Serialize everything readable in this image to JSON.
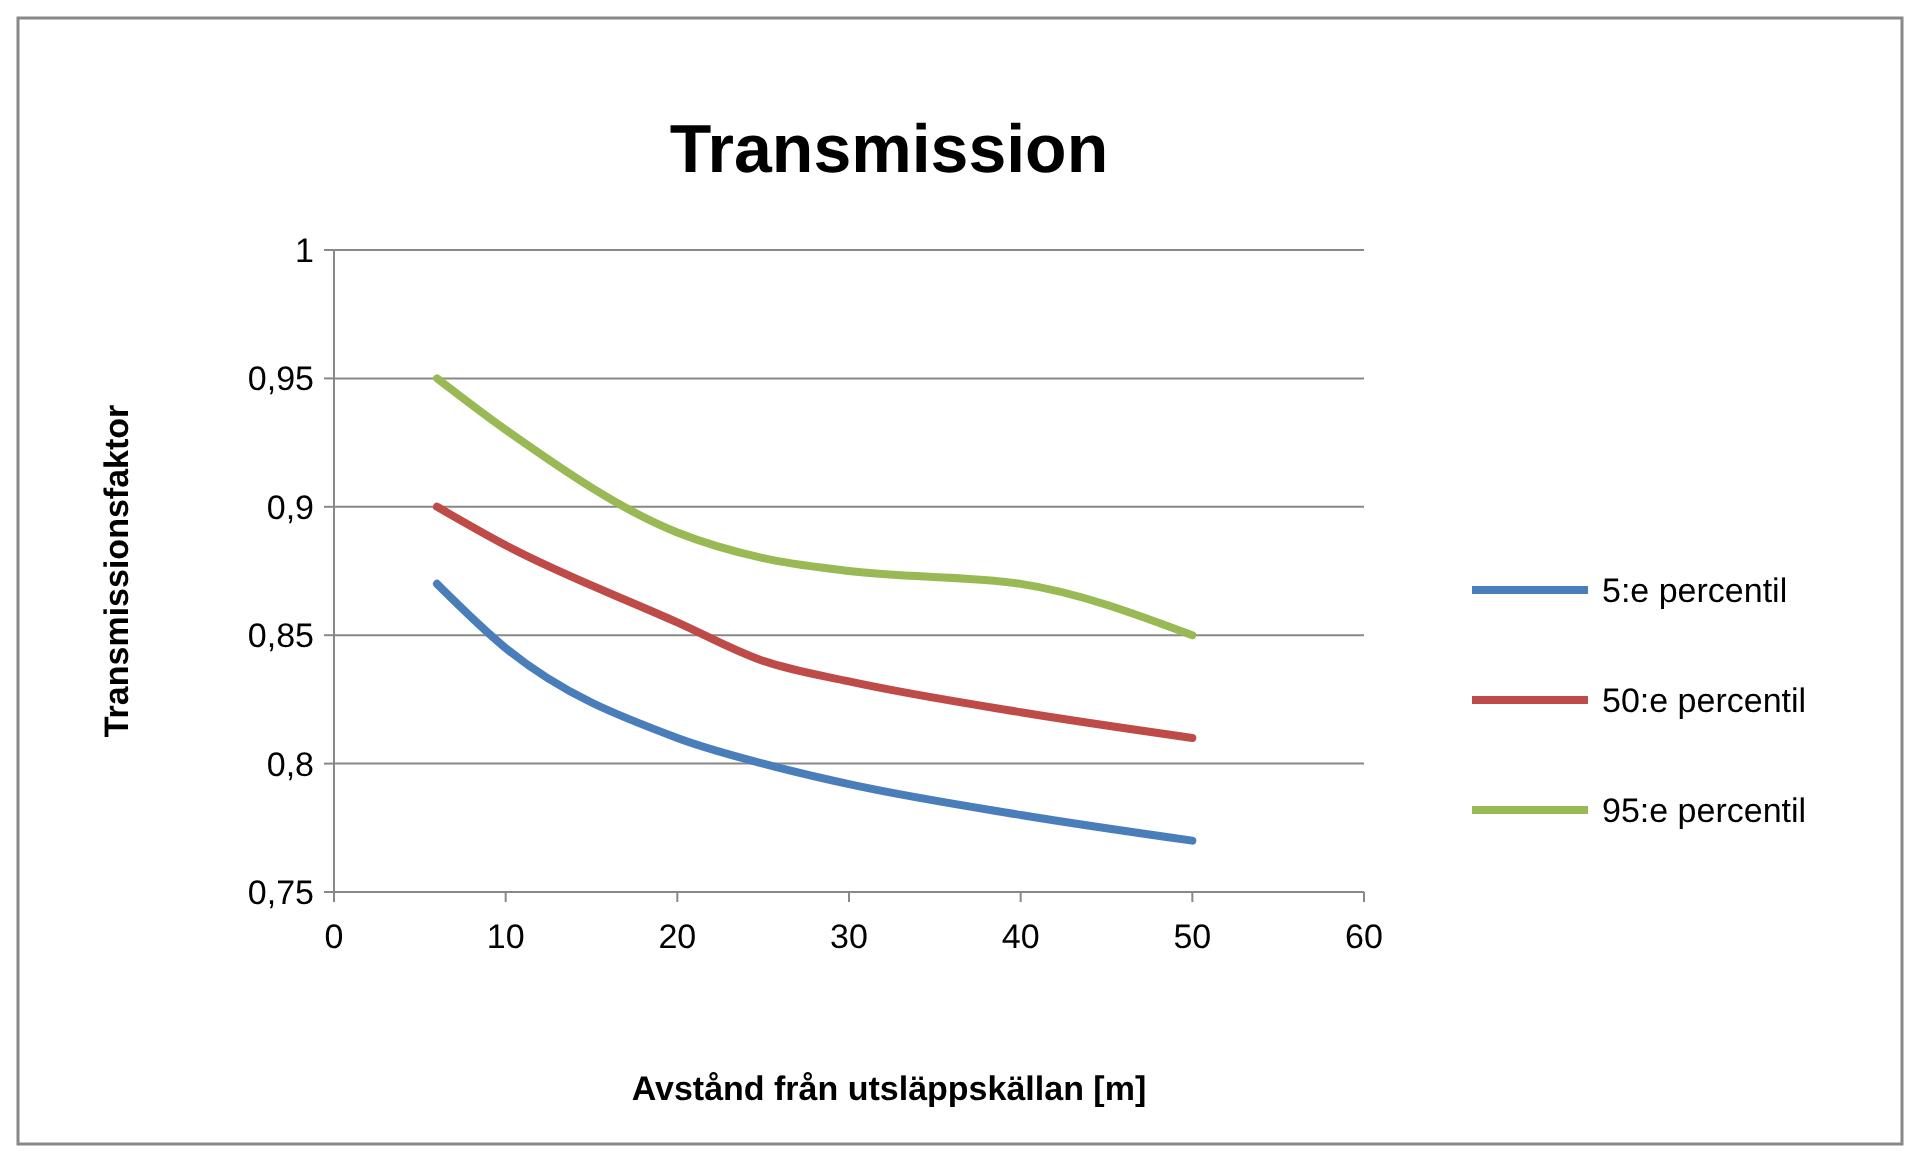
{
  "chart_data": {
    "type": "line",
    "title": "Transmission",
    "xlabel": "Avstånd från utsläppskällan [m]",
    "ylabel": "Transmissionsfaktor",
    "x": [
      6,
      10,
      20,
      25,
      30,
      40,
      50
    ],
    "series": [
      {
        "name": "5:e percentil",
        "color": "#4a7ebb",
        "values": [
          0.87,
          0.845,
          0.81,
          0.8,
          0.792,
          0.78,
          0.77
        ]
      },
      {
        "name": "50:e percentil",
        "color": "#be4b48",
        "values": [
          0.9,
          0.885,
          0.855,
          0.84,
          0.832,
          0.82,
          0.81
        ]
      },
      {
        "name": "95:e percentil",
        "color": "#98b954",
        "values": [
          0.95,
          0.93,
          0.89,
          0.88,
          0.875,
          0.87,
          0.85
        ]
      }
    ],
    "xlim": [
      0,
      60
    ],
    "xticks": [
      0,
      10,
      20,
      30,
      40,
      50,
      60
    ],
    "ylim": [
      0.75,
      1
    ],
    "yticks": [
      {
        "value": 0.75,
        "label": "0,75"
      },
      {
        "value": 0.8,
        "label": "0,8"
      },
      {
        "value": 0.85,
        "label": "0,85"
      },
      {
        "value": 0.9,
        "label": "0,9"
      },
      {
        "value": 0.95,
        "label": "0,95"
      },
      1
    ],
    "grid": "y",
    "legend": "right",
    "marker": "none",
    "line_style": "solid"
  }
}
